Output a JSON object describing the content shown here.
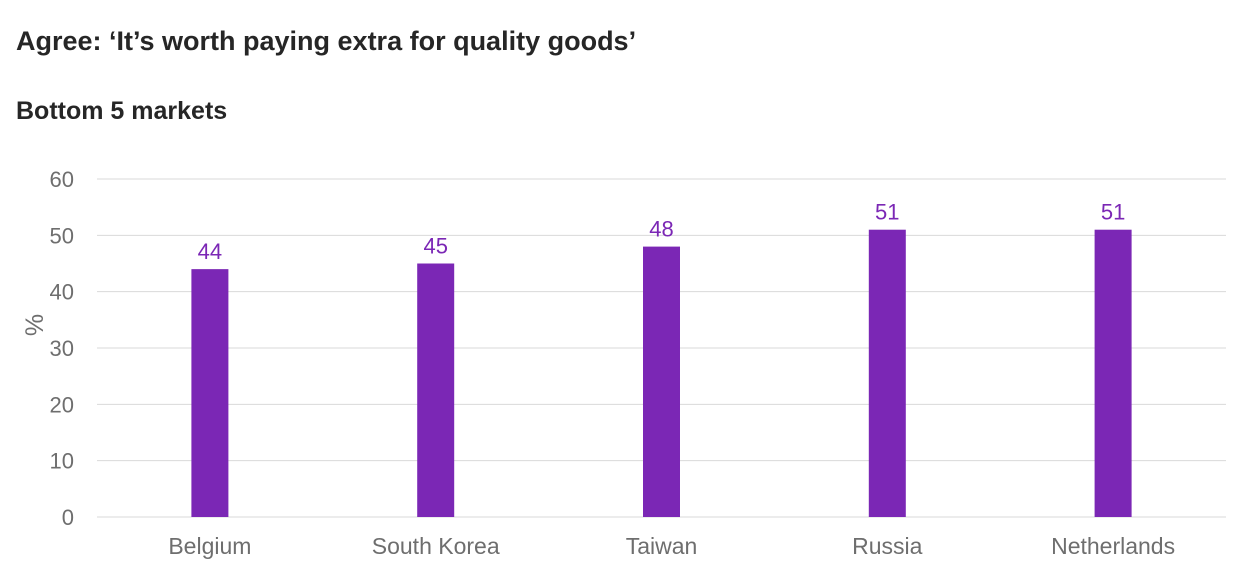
{
  "chart_data": {
    "type": "bar",
    "title": "Agree: ‘It’s worth paying extra for quality goods’",
    "subtitle": "Bottom 5 markets",
    "xlabel": "",
    "ylabel": "%",
    "categories": [
      "Belgium",
      "South Korea",
      "Taiwan",
      "Russia",
      "Netherlands"
    ],
    "values": [
      44,
      45,
      48,
      51,
      51
    ],
    "data_labels": [
      "44",
      "45",
      "48",
      "51",
      "51"
    ],
    "ylim": [
      0,
      60
    ],
    "yticks": [
      "0",
      "10",
      "20",
      "30",
      "40",
      "50",
      "60"
    ],
    "grid": true,
    "legend": "none",
    "colors": {
      "bar": "#7B27B5",
      "data_label": "#7B27B5",
      "gridline": "#d9d9d9",
      "axis_text": "#6e6e6e",
      "title_text": "#262626"
    }
  }
}
